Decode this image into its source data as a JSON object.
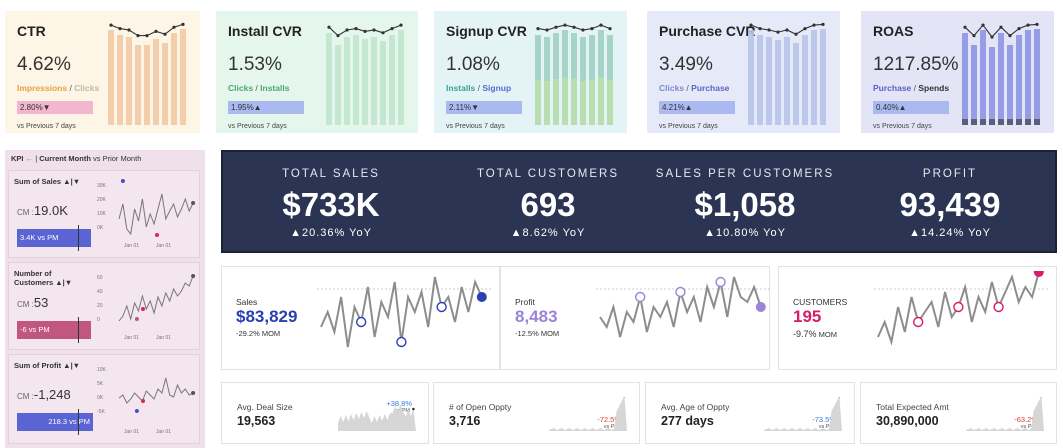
{
  "kpi_cards": [
    {
      "title": "CTR",
      "value": "4.62%",
      "sub_a": "Impressions",
      "sub_sep": " / ",
      "sub_b": "Clicks",
      "change": "2.80%▼",
      "vs": "vs Previous 7 days",
      "bg": "#fdf6e6",
      "bar_color": "#f3c9a3",
      "pill_color": "#f2b6cf",
      "sub_a_color": "#e9a040",
      "sub_b_color": "#c0b8a0"
    },
    {
      "title": "Install CVR",
      "value": "1.53%",
      "sub_a": "Clicks",
      "sub_sep": " / ",
      "sub_b": "Installs",
      "change": "1.95%▲",
      "vs": "vs Previous 7 days",
      "bg": "#e5f6ec",
      "bar_color": "#bfe5cc",
      "pill_color": "#aab9f0",
      "sub_a_color": "#4aa870",
      "sub_b_color": "#4aa870"
    },
    {
      "title": "Signup CVR",
      "value": "1.08%",
      "sub_a": "Installs",
      "sub_sep": " / ",
      "sub_b": "Signup",
      "change": "2.11%▼",
      "vs": "vs Previous 7 days",
      "bg": "#e3f3f6",
      "bar_color": "#9fd0c2",
      "pill_color": "#aab9f0",
      "sub_a_color": "#3aa28a",
      "sub_b_color": "#4f6fd6"
    },
    {
      "title": "Purchase CVR",
      "value": "3.49%",
      "sub_a": "Clicks",
      "sub_sep": " / ",
      "sub_b": "Purchase",
      "change": "4.21%▲",
      "vs": "vs Previous 7 days",
      "bg": "#e6e9f8",
      "bar_color": "#b7c3ea",
      "pill_color": "#aab9f0",
      "sub_a_color": "#7d8ad0",
      "sub_b_color": "#5a64c4"
    },
    {
      "title": "ROAS",
      "value": "1217.85%",
      "sub_a": "Purchase",
      "sub_sep": " / ",
      "sub_b": "Spends",
      "change": "0.40%▲",
      "vs": "vs Previous 7 days",
      "bg": "#e4e4f7",
      "bar_color": "#8b95e3",
      "pill_color": "#aab9f0",
      "sub_a_color": "#5a5ec8",
      "sub_b_color": "#333333"
    }
  ],
  "kpi_panel": {
    "header_kpi": "KPI",
    "header_arrow": "←",
    "header_sep": "|",
    "header_current": "Current Month",
    "header_vs": "vs Prior Month",
    "cards": [
      {
        "label": "Sum of Sales ▲|▼",
        "cm_prefix": "CM :",
        "value": "19.0K",
        "bar_text": "3.4K vs PM",
        "bar_color": "#5b64d3",
        "yticks": [
          "30K",
          "20K",
          "10K",
          "0K"
        ],
        "xticks": [
          "Jan 01",
          "Jan 01"
        ]
      },
      {
        "label": "Number of Customers ▲|▼",
        "cm_prefix": "CM :",
        "value": "53",
        "bar_text": "-6 vs PM",
        "bar_color": "#c2577d",
        "yticks": [
          "60",
          "40",
          "20",
          "0"
        ],
        "xticks": [
          "Jan 01",
          "Jan 01"
        ]
      },
      {
        "label": "Sum of Profit ▲|▼",
        "cm_prefix": "CM :",
        "value": "-1,248",
        "bar_text": "218.3 vs PM",
        "bar_color": "#5b64d3",
        "yticks": [
          "10K",
          "5K",
          "0K",
          "-5K"
        ],
        "xticks": [
          "Jan 01",
          "Jan 01"
        ]
      }
    ]
  },
  "totals": [
    {
      "label": "TOTAL SALES",
      "value": "$733K",
      "yoy": "▲20.36% YoY"
    },
    {
      "label": "TOTAL CUSTOMERS",
      "value": "693",
      "yoy": "▲8.62% YoY"
    },
    {
      "label": "SALES PER CUSTOMERS",
      "value": "$1,058",
      "yoy": "▲10.80% YoY"
    },
    {
      "label": "PROFIT",
      "value": "93,439",
      "yoy": "▲14.24% YoY"
    }
  ],
  "trend_panels": [
    {
      "label": "Sales",
      "value": "$83,829",
      "change": "-29.2% MOM",
      "color": "#2b3fb5"
    },
    {
      "label": "Profit",
      "value": "8,483",
      "change": "-12.5% MOM",
      "color": "#9a84d8"
    },
    {
      "label": "CUSTOMERS",
      "value": "195",
      "change": "-9.7%",
      "change_suffix": "MOM",
      "color": "#d81b6a"
    }
  ],
  "bottom_cards": [
    {
      "label": "Avg. Deal Size",
      "value": "19,563",
      "delta": "+38.8%",
      "delta_color": "#3a7ad6",
      "vs": "vs PM"
    },
    {
      "label": "# of Open Oppty",
      "value": "3,716",
      "delta": "-72.5%",
      "delta_color": "#d94040",
      "vs": "vs PM"
    },
    {
      "label": "Avg. Age of Oppty",
      "value": "277 days",
      "delta": "-73.5%",
      "delta_color": "#3a7ad6",
      "vs": "vs PM"
    },
    {
      "label": "Total Expected Amt",
      "value": "30,890,000",
      "delta": "-63.2%",
      "delta_color": "#d94040",
      "vs": "vs PM"
    }
  ]
}
